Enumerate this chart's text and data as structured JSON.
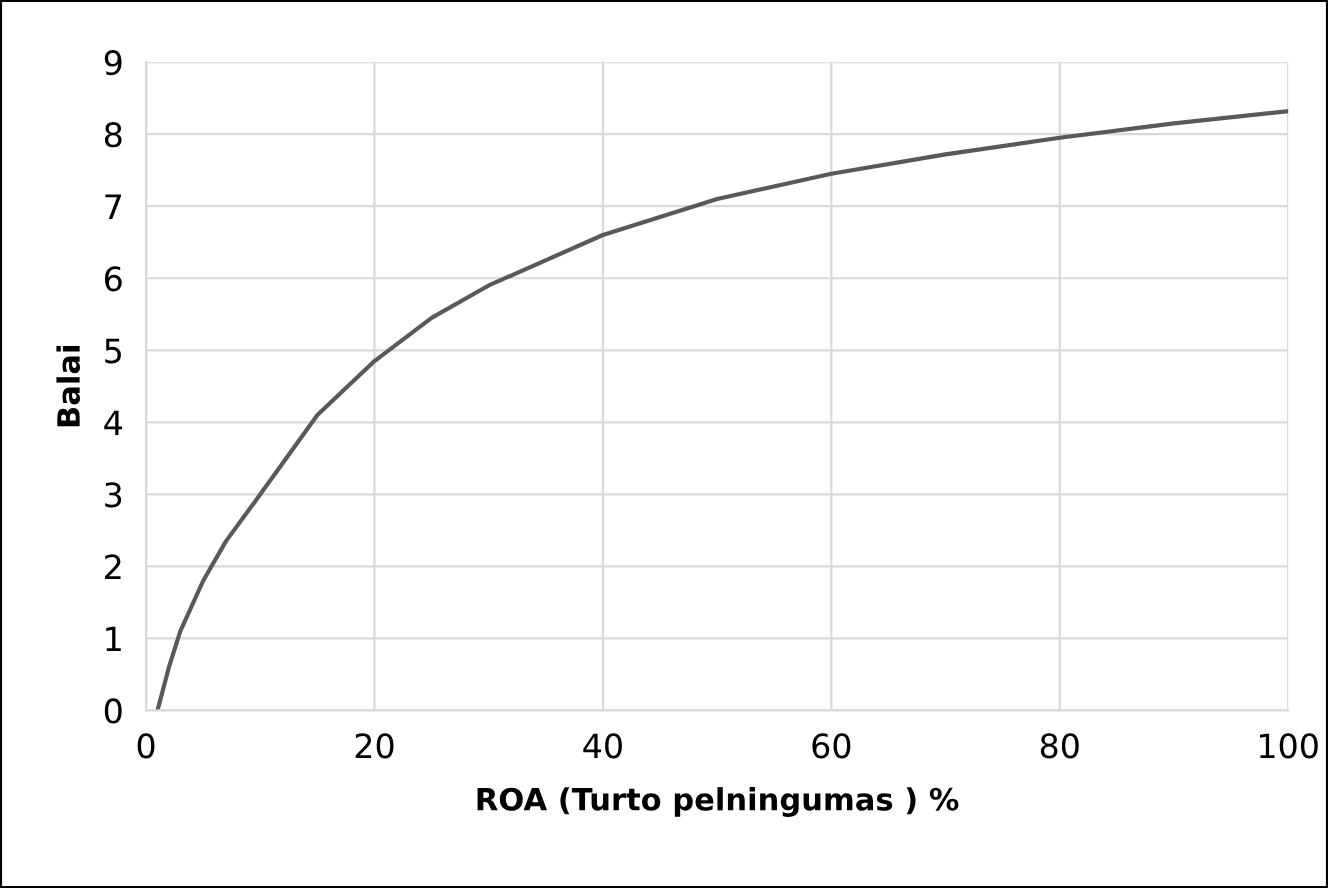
{
  "chart_data": {
    "type": "line",
    "xlabel": "ROA (Turto pelningumas ) %",
    "ylabel": "Balai",
    "series": [
      {
        "color": "#595959",
        "x": [
          1,
          2,
          3,
          5,
          7,
          10,
          15,
          20,
          25,
          30,
          40,
          50,
          60,
          70,
          80,
          90,
          100
        ],
        "values": [
          0,
          0.6,
          1.1,
          1.8,
          2.35,
          3.0,
          4.1,
          4.85,
          5.45,
          5.9,
          6.6,
          7.1,
          7.45,
          7.72,
          7.95,
          8.15,
          8.32
        ]
      }
    ],
    "xlim": [
      0,
      100
    ],
    "xticks": [
      0,
      20,
      40,
      60,
      80,
      100
    ],
    "ylim": [
      0,
      9
    ],
    "yticks": [
      0,
      1,
      2,
      3,
      4,
      5,
      6,
      7,
      8,
      9
    ],
    "grid": true,
    "marker": "none",
    "line_style": "solid"
  }
}
